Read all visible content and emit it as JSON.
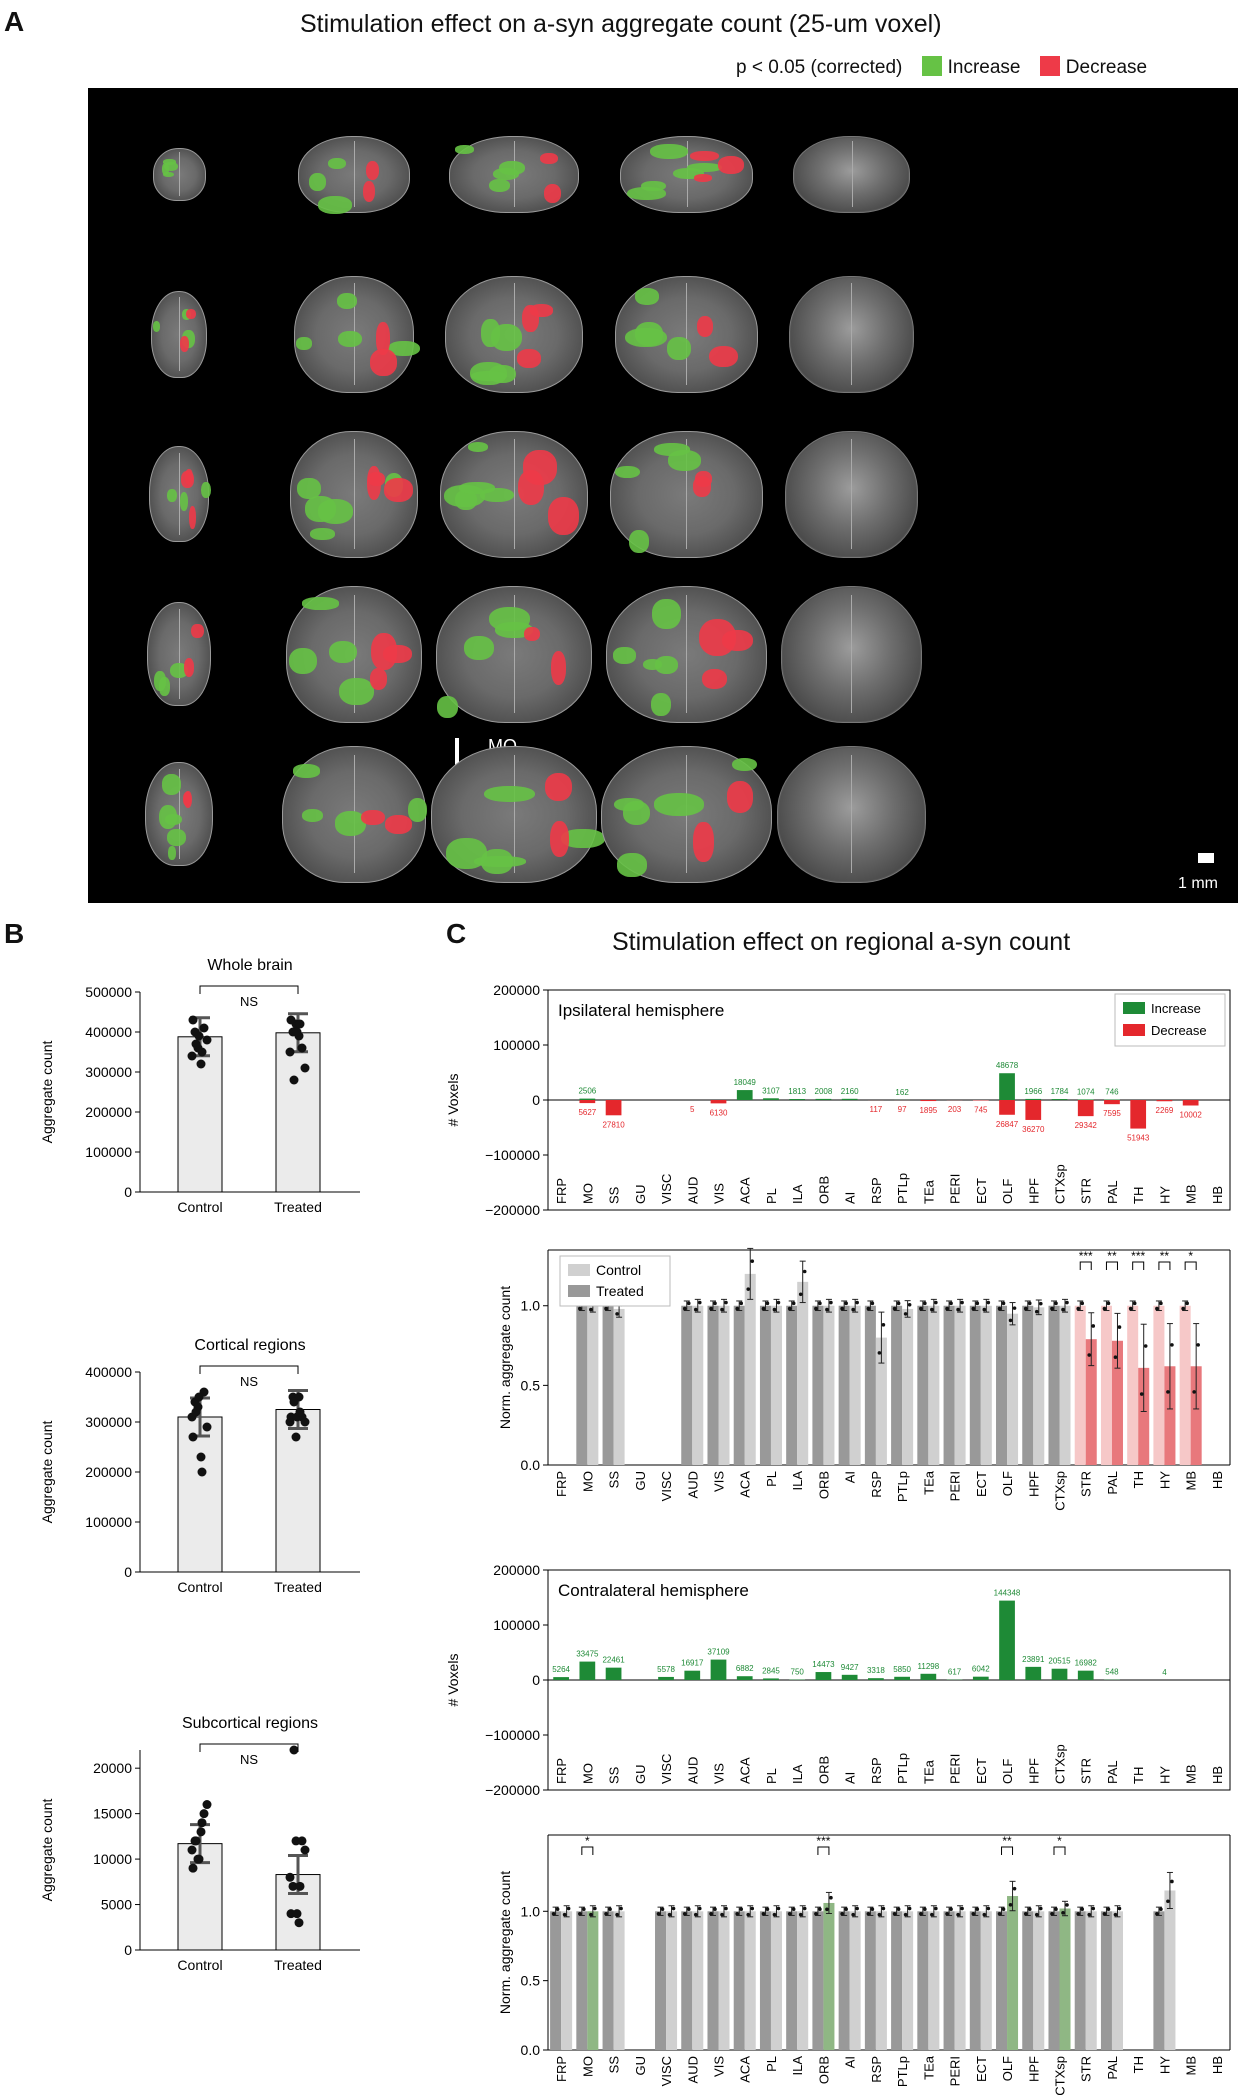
{
  "panelA": {
    "letter": "A",
    "title": "Stimulation effect on a-syn aggregate count (25-um voxel)",
    "legend_p": "p < 0.05 (corrected)",
    "legend_inc": "Increase",
    "legend_dec": "Decrease",
    "mo_label": "MO",
    "scale_label": "1 mm",
    "colors": {
      "increase": "#66c245",
      "decrease": "#ee3a48"
    }
  },
  "panelB": {
    "letter": "B",
    "ylabel": "Aggregate count",
    "categories": [
      "Control",
      "Treated"
    ],
    "sig": "NS",
    "subplots": [
      {
        "title": "Whole brain",
        "ticks": [
          "0",
          "100000",
          "200000",
          "300000",
          "400000",
          "500000"
        ]
      },
      {
        "title": "Cortical regions",
        "ticks": [
          "0",
          "100000",
          "200000",
          "300000",
          "400000"
        ]
      },
      {
        "title": "Subcortical regions",
        "ticks": [
          "0",
          "5000",
          "10000",
          "15000",
          "20000"
        ]
      }
    ]
  },
  "panelC": {
    "letter": "C",
    "title": "Stimulation effect on regional a-syn count",
    "ipsi_label": "Ipsilateral hemisphere",
    "contra_label": "Contralateral hemisphere",
    "voxel_ylabel": "# Voxels",
    "norm_ylabel": "Norm. aggregate count",
    "voxel_ticks": [
      "200000",
      "100000",
      "0",
      "−100000",
      "−200000"
    ],
    "norm_ticks": [
      "0.0",
      "0.5",
      "1.0"
    ],
    "legend_inc": "Increase",
    "legend_dec": "Decrease",
    "legend_control": "Control",
    "legend_treated": "Treated",
    "regions": [
      "FRP",
      "MO",
      "SS",
      "GU",
      "VISC",
      "AUD",
      "VIS",
      "ACA",
      "PL",
      "ILA",
      "ORB",
      "AI",
      "RSP",
      "PTLp",
      "TEa",
      "PERI",
      "ECT",
      "OLF",
      "HPF",
      "CTXsp",
      "STR",
      "PAL",
      "TH",
      "HY",
      "MB",
      "HB"
    ],
    "ipsi_increase_labels": [
      "",
      "2506",
      "",
      "",
      "",
      "",
      "",
      "18049",
      "3107",
      "1813",
      "2008",
      "2160",
      "",
      "162",
      "",
      "",
      "",
      "48678",
      "1966",
      "1784",
      "1074",
      "746",
      "",
      "",
      "",
      ""
    ],
    "ipsi_decrease_labels": [
      "",
      "5627",
      "27810",
      "",
      "",
      "5",
      "6130",
      "",
      "",
      "",
      "",
      "",
      "117",
      "97",
      "1895",
      "203",
      "745",
      "26847",
      "36270",
      "",
      "29342",
      "7595",
      "51943",
      "2269",
      "10002",
      ""
    ],
    "ipsi_sig": [
      "",
      "",
      "",
      "",
      "",
      "",
      "",
      "",
      "",
      "",
      "",
      "",
      "",
      "",
      "",
      "",
      "",
      "",
      "",
      "",
      "***",
      "**",
      "***",
      "**",
      "*",
      ""
    ],
    "contra_increase_labels": [
      "5264",
      "33475",
      "22461",
      "",
      "5578",
      "16917",
      "37109",
      "6882",
      "2845",
      "750",
      "14473",
      "9427",
      "3318",
      "5850",
      "11298",
      "617",
      "6042",
      "144348",
      "23891",
      "20515",
      "16982",
      "548",
      "",
      "4",
      "",
      ""
    ],
    "contra_sig": [
      "",
      "*",
      "",
      "",
      "",
      "",
      "",
      "",
      "",
      "",
      "***",
      "",
      "",
      "",
      "",
      "",
      "",
      "**",
      "",
      "*",
      "",
      "",
      "",
      "",
      "",
      ""
    ]
  },
  "chart_data": [
    {
      "type": "bar",
      "title": "Whole brain",
      "categories": [
        "Control",
        "Treated"
      ],
      "ylabel": "Aggregate count",
      "ylim": [
        0,
        500000
      ],
      "series": [
        {
          "values": [
            388000,
            398000
          ]
        }
      ],
      "annotation": "NS"
    },
    {
      "type": "bar",
      "title": "Cortical regions",
      "categories": [
        "Control",
        "Treated"
      ],
      "ylabel": "Aggregate count",
      "ylim": [
        0,
        400000
      ],
      "series": [
        {
          "values": [
            310000,
            325000
          ]
        }
      ],
      "annotation": "NS"
    },
    {
      "type": "bar",
      "title": "Subcortical regions",
      "categories": [
        "Control",
        "Treated"
      ],
      "ylabel": "Aggregate count",
      "ylim": [
        0,
        22000
      ],
      "series": [
        {
          "values": [
            11700,
            8300
          ]
        }
      ],
      "annotation": "NS"
    },
    {
      "type": "bar",
      "title": "Ipsilateral hemisphere",
      "ylabel": "# Voxels",
      "ylim": [
        -200000,
        200000
      ],
      "categories": [
        "FRP",
        "MO",
        "SS",
        "GU",
        "VISC",
        "AUD",
        "VIS",
        "ACA",
        "PL",
        "ILA",
        "ORB",
        "AI",
        "RSP",
        "PTLp",
        "TEa",
        "PERI",
        "ECT",
        "OLF",
        "HPF",
        "CTXsp",
        "STR",
        "PAL",
        "TH",
        "HY",
        "MB",
        "HB"
      ],
      "series": [
        {
          "name": "Increase",
          "values": [
            0,
            2506,
            0,
            0,
            0,
            0,
            0,
            18049,
            3107,
            1813,
            2008,
            2160,
            0,
            162,
            0,
            0,
            0,
            48678,
            1966,
            1784,
            1074,
            746,
            0,
            0,
            0,
            0
          ]
        },
        {
          "name": "Decrease",
          "values": [
            0,
            -5627,
            -27810,
            0,
            0,
            -5,
            -6130,
            0,
            0,
            0,
            0,
            0,
            -117,
            -97,
            -1895,
            -203,
            -745,
            -26847,
            -36270,
            0,
            -29342,
            -7595,
            -51943,
            -2269,
            -10002,
            0
          ]
        }
      ]
    },
    {
      "type": "bar",
      "title": "",
      "ylabel": "Norm. aggregate count",
      "ylim": [
        0,
        1.35
      ],
      "categories": [
        "FRP",
        "MO",
        "SS",
        "GU",
        "VISC",
        "AUD",
        "VIS",
        "ACA",
        "PL",
        "ILA",
        "ORB",
        "AI",
        "RSP",
        "PTLp",
        "TEa",
        "PERI",
        "ECT",
        "OLF",
        "HPF",
        "CTXsp",
        "STR",
        "PAL",
        "TH",
        "HY",
        "MB",
        "HB"
      ],
      "series": [
        {
          "name": "Control",
          "values": [
            0,
            1,
            1,
            0,
            0,
            1,
            1,
            1,
            1,
            1,
            1,
            1,
            1,
            1,
            1,
            1,
            1,
            1,
            1,
            1,
            1,
            1,
            1,
            1,
            1,
            0
          ]
        },
        {
          "name": "Treated",
          "values": [
            0,
            1,
            0.98,
            0,
            0,
            1,
            1,
            1.2,
            1,
            1.15,
            1,
            1,
            0.8,
            0.98,
            1,
            1,
            1,
            0.95,
            0.99,
            1,
            0.79,
            0.78,
            0.61,
            0.62,
            0.62,
            0
          ]
        }
      ]
    },
    {
      "type": "bar",
      "title": "Contralateral hemisphere",
      "ylabel": "# Voxels",
      "ylim": [
        -200000,
        200000
      ],
      "categories": [
        "FRP",
        "MO",
        "SS",
        "GU",
        "VISC",
        "AUD",
        "VIS",
        "ACA",
        "PL",
        "ILA",
        "ORB",
        "AI",
        "RSP",
        "PTLp",
        "TEa",
        "PERI",
        "ECT",
        "OLF",
        "HPF",
        "CTXsp",
        "STR",
        "PAL",
        "TH",
        "HY",
        "MB",
        "HB"
      ],
      "series": [
        {
          "name": "Increase",
          "values": [
            5264,
            33475,
            22461,
            0,
            5578,
            16917,
            37109,
            6882,
            2845,
            750,
            14473,
            9427,
            3318,
            5850,
            11298,
            617,
            6042,
            144348,
            23891,
            20515,
            16982,
            548,
            0,
            4,
            0,
            0
          ]
        }
      ]
    },
    {
      "type": "bar",
      "title": "",
      "ylabel": "Norm. aggregate count",
      "ylim": [
        0,
        1.55
      ],
      "categories": [
        "FRP",
        "MO",
        "SS",
        "GU",
        "VISC",
        "AUD",
        "VIS",
        "ACA",
        "PL",
        "ILA",
        "ORB",
        "AI",
        "RSP",
        "PTLp",
        "TEa",
        "PERI",
        "ECT",
        "OLF",
        "HPF",
        "CTXsp",
        "STR",
        "PAL",
        "TH",
        "HY",
        "MB",
        "HB"
      ],
      "series": [
        {
          "name": "Control",
          "values": [
            1,
            1,
            1,
            0,
            1,
            1,
            1,
            1,
            1,
            1,
            1,
            1,
            1,
            1,
            1,
            1,
            1,
            1,
            1,
            1,
            1,
            1,
            0,
            1,
            0,
            0
          ]
        },
        {
          "name": "Treated",
          "values": [
            1,
            1,
            1,
            0,
            1,
            1,
            1,
            1,
            1,
            1,
            1.06,
            1,
            1,
            1,
            1,
            1,
            1,
            1.11,
            1,
            1.02,
            1,
            1,
            0,
            1.15,
            0,
            0
          ]
        }
      ]
    }
  ]
}
